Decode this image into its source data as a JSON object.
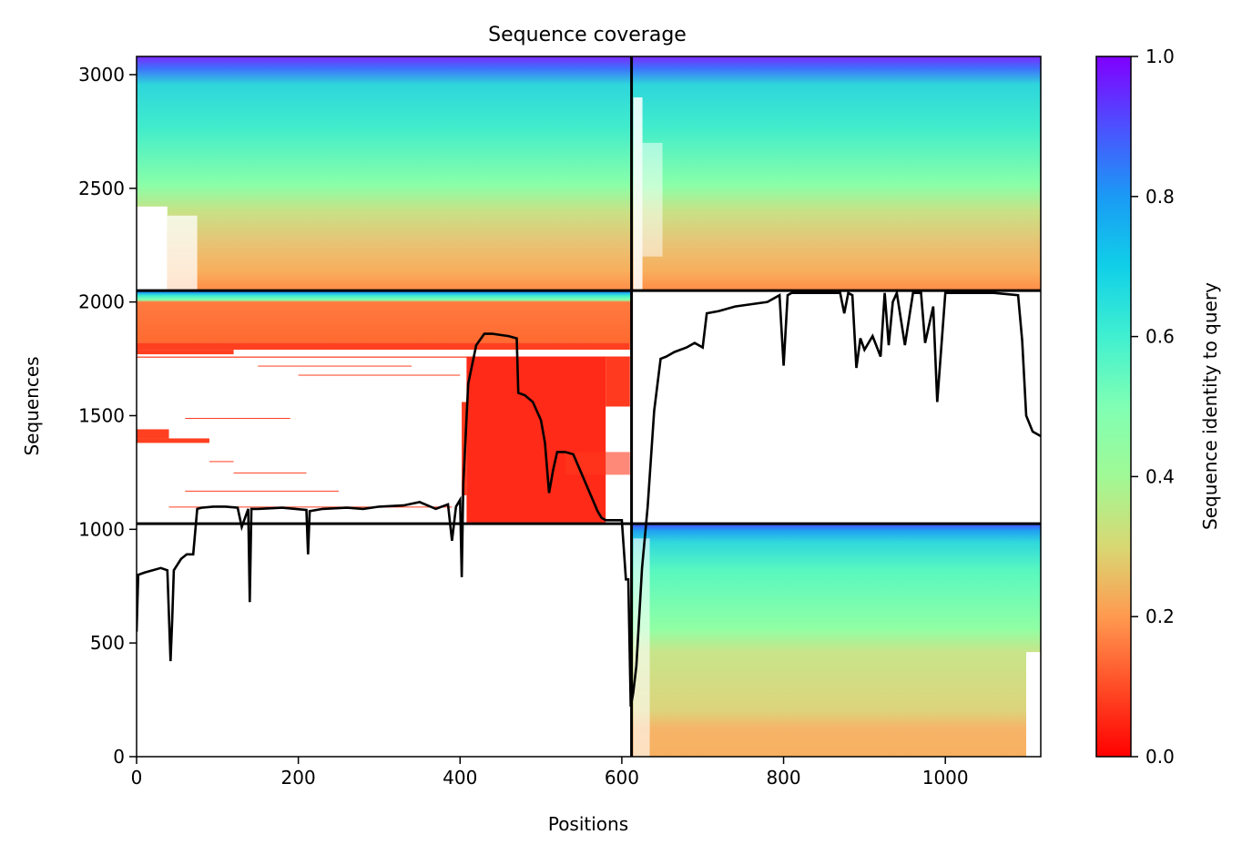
{
  "chart_data": {
    "type": "heatmap",
    "title": "Sequence coverage",
    "xlabel": "Positions",
    "ylabel": "Sequences",
    "xlim": [
      0,
      1118
    ],
    "ylim": [
      0,
      3080
    ],
    "x_ticks": [
      0,
      200,
      400,
      600,
      800,
      1000
    ],
    "y_ticks": [
      0,
      500,
      1000,
      1500,
      2000,
      2500,
      3000
    ],
    "colorbar": {
      "label": "Sequence identity to query",
      "range": [
        0.0,
        1.0
      ],
      "ticks": [
        0.0,
        0.2,
        0.4,
        0.6,
        0.8,
        1.0
      ],
      "colormap": "rainbow_r"
    },
    "chain_boundaries": {
      "x": 612,
      "y": [
        1025,
        2050
      ]
    },
    "blocks": [
      {
        "name": "chain A paired (top-left)",
        "x": [
          0,
          612
        ],
        "y": [
          2050,
          3080
        ]
      },
      {
        "name": "chain B paired (top-right)",
        "x": [
          612,
          1118
        ],
        "y": [
          2050,
          3080
        ]
      },
      {
        "name": "chain A unpaired",
        "x": [
          0,
          612
        ],
        "y": [
          1025,
          2050
        ]
      },
      {
        "name": "chain B unpaired",
        "x": [
          612,
          1118
        ],
        "y": [
          0,
          1025
        ]
      }
    ],
    "coverage_line": {
      "color": "#000000",
      "x": [
        0,
        2,
        10,
        30,
        38,
        42,
        44,
        46,
        55,
        62,
        70,
        75,
        80,
        95,
        110,
        125,
        130,
        138,
        140,
        142,
        150,
        180,
        210,
        212,
        214,
        230,
        260,
        280,
        300,
        330,
        350,
        370,
        385,
        390,
        395,
        400,
        402,
        404,
        410,
        420,
        430,
        440,
        450,
        460,
        470,
        472,
        480,
        490,
        500,
        505,
        510,
        515,
        520,
        530,
        540,
        570,
        575,
        580,
        600,
        605,
        608,
        611,
        614,
        618,
        625,
        632,
        640,
        648,
        655,
        665,
        680,
        690,
        700,
        705,
        720,
        740,
        760,
        780,
        795,
        800,
        805,
        810,
        830,
        850,
        860,
        870,
        875,
        880,
        885,
        890,
        895,
        900,
        910,
        920,
        925,
        930,
        935,
        940,
        950,
        960,
        970,
        975,
        985,
        990,
        1000,
        1010,
        1015,
        1020,
        1040,
        1060,
        1090,
        1095,
        1100,
        1108,
        1118
      ],
      "y": [
        550,
        800,
        810,
        830,
        820,
        420,
        600,
        820,
        870,
        890,
        890,
        1090,
        1095,
        1100,
        1100,
        1095,
        1010,
        1090,
        680,
        1090,
        1090,
        1095,
        1085,
        890,
        1080,
        1090,
        1095,
        1090,
        1100,
        1105,
        1120,
        1090,
        1110,
        950,
        1100,
        1130,
        790,
        1200,
        1640,
        1810,
        1860,
        1860,
        1855,
        1850,
        1840,
        1600,
        1590,
        1560,
        1480,
        1380,
        1160,
        1260,
        1340,
        1340,
        1330,
        1080,
        1050,
        1040,
        1040,
        780,
        780,
        220,
        280,
        400,
        830,
        1100,
        1520,
        1750,
        1760,
        1780,
        1800,
        1820,
        1800,
        1950,
        1960,
        1980,
        1990,
        2000,
        2030,
        1720,
        2030,
        2040,
        2040,
        2040,
        2040,
        2040,
        1950,
        2040,
        2030,
        1710,
        1840,
        1790,
        1850,
        1760,
        2040,
        1810,
        2000,
        2040,
        1810,
        2040,
        2040,
        1820,
        1980,
        1560,
        2040,
        2040,
        2040,
        2040,
        2040,
        2040,
        2030,
        1830,
        1500,
        1430,
        1410
      ]
    }
  }
}
